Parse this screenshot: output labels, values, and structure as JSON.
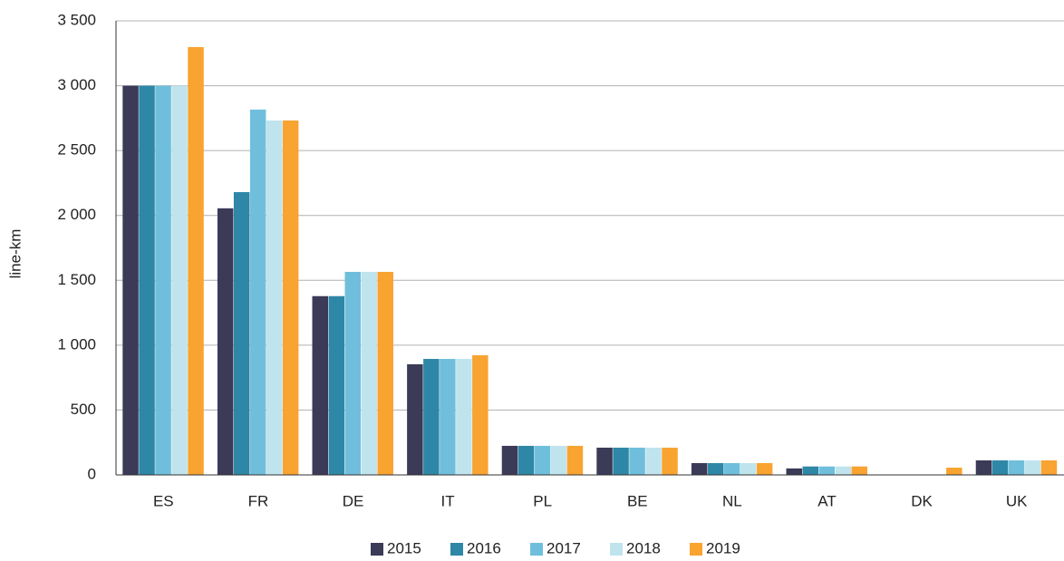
{
  "chart_data": {
    "type": "bar",
    "y_label": "line-km",
    "categories": [
      "ES",
      "FR",
      "DE",
      "IT",
      "PL",
      "BE",
      "NL",
      "AT",
      "DK",
      "UK"
    ],
    "series": [
      {
        "name": "2015",
        "color": "#3b3a57",
        "values": [
          3000,
          2055,
          1378,
          853,
          224,
          210,
          91,
          50,
          null,
          112
        ]
      },
      {
        "name": "2016",
        "color": "#2e87a6",
        "values": [
          3000,
          2180,
          1378,
          894,
          224,
          210,
          91,
          65,
          null,
          112
        ]
      },
      {
        "name": "2017",
        "color": "#6fbfdc",
        "values": [
          3000,
          2816,
          1565,
          894,
          224,
          210,
          91,
          65,
          null,
          112
        ]
      },
      {
        "name": "2018",
        "color": "#bfe4ee",
        "values": [
          3000,
          2732,
          1565,
          894,
          224,
          210,
          91,
          65,
          null,
          112
        ]
      },
      {
        "name": "2019",
        "color": "#f9a331",
        "values": [
          3298,
          2732,
          1565,
          922,
          224,
          210,
          91,
          65,
          56,
          112
        ]
      }
    ],
    "ylim": [
      0,
      3500
    ],
    "yticks": [
      0,
      500,
      {
        "value": 1000,
        "label": "1 000"
      },
      {
        "value": 1500,
        "label": "1 500"
      },
      {
        "value": 2000,
        "label": "2 000"
      },
      {
        "value": 2500,
        "label": "2 500"
      },
      {
        "value": 3000,
        "label": "3 000"
      },
      {
        "value": 3500,
        "label": "3 500"
      }
    ],
    "grid": true,
    "legend": "bottom"
  }
}
